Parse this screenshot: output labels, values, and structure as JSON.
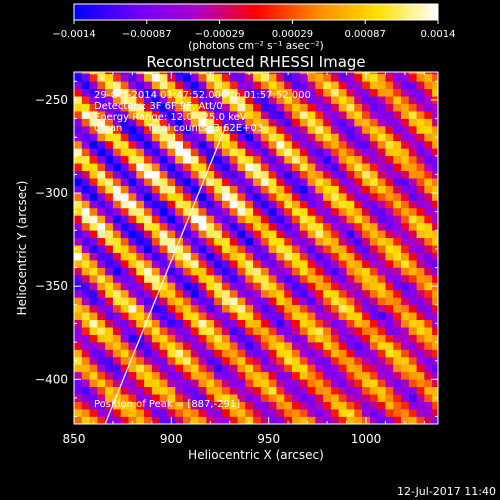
{
  "chart_data": {
    "type": "heatmap",
    "title": "Reconstructed RHESSI Image",
    "xlabel": "Heliocentric X (arcsec)",
    "ylabel": "Heliocentric Y (arcsec)",
    "xlim": [
      850,
      1037
    ],
    "ylim": [
      -424,
      -235
    ],
    "x_ticks": [
      850,
      900,
      950,
      1000
    ],
    "y_ticks": [
      -250,
      -300,
      -350,
      -400
    ],
    "x_tick_labels": [
      "850",
      "900",
      "950",
      "1000"
    ],
    "y_tick_labels": [
      "−250",
      "−300",
      "−350",
      "−400"
    ],
    "colorbar": {
      "vmin": -0.0014,
      "vmax": 0.0014,
      "tick_labels": [
        "−0.0014",
        "−0.00087",
        "−0.00029",
        "0.00029",
        "0.00087",
        "0.0014"
      ],
      "unit_label": "(photons cm⁻² s⁻¹ asec⁻²)",
      "colors": [
        "#0000ff",
        "#6a00ff",
        "#aa00cc",
        "#ff0000",
        "#ff8800",
        "#ffe000",
        "#ffffff"
      ]
    },
    "annotations": [
      "29-Oct-2014 01:47:52.000 to 01:57:52.000",
      "Detectors: 3F 6F 9F, Att/0",
      "Energy Range: 12.0 - 25.0 keV",
      "Clean",
      "Total counts: 3.62E+03"
    ],
    "peak_text": "Position of Peak = [887,-291]",
    "peak_position": [
      887,
      -291
    ],
    "limb_line": [
      [
        866,
        -424
      ],
      [
        928,
        -264
      ]
    ]
  },
  "footer": {
    "date": "12-Jul-2017 11:40"
  },
  "colors": {
    "background": "#000000",
    "axes": "#ffffff",
    "limb": "#ffffff"
  }
}
